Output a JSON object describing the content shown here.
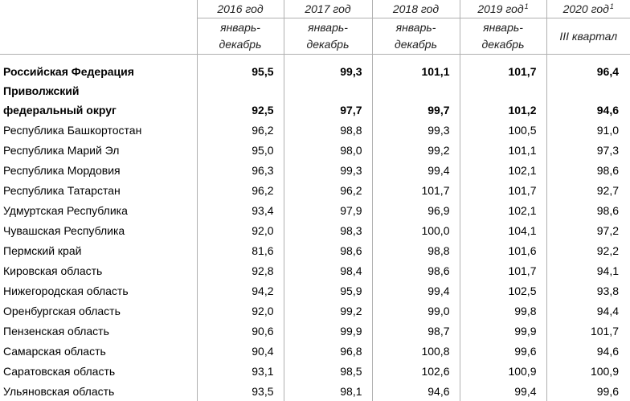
{
  "columns": [
    {
      "year": "2016 год",
      "sup": "",
      "period_line1": "январь-",
      "period_line2": "декабрь"
    },
    {
      "year": "2017 год",
      "sup": "",
      "period_line1": "январь-",
      "period_line2": "декабрь"
    },
    {
      "year": "2018 год",
      "sup": "",
      "period_line1": "январь-",
      "period_line2": "декабрь"
    },
    {
      "year": "2019 год",
      "sup": "1",
      "period_line1": "январь-",
      "period_line2": "декабрь"
    },
    {
      "year": "2020 год",
      "sup": "1",
      "period_line1": "III квартал",
      "period_line2": ""
    }
  ],
  "summary": {
    "rf": {
      "name": "Российская Федерация",
      "values": [
        "95,5",
        "99,3",
        "101,1",
        "101,7",
        "96,4"
      ]
    },
    "pfo": {
      "name_line1": "Приволжский",
      "name_line2": "федеральный округ",
      "values": [
        "92,5",
        "97,7",
        "99,7",
        "101,2",
        "94,6"
      ]
    }
  },
  "rows": [
    {
      "name": "Республика Башкортостан",
      "values": [
        "96,2",
        "98,8",
        "99,3",
        "100,5",
        "91,0"
      ]
    },
    {
      "name": "Республика Марий Эл",
      "values": [
        "95,0",
        "98,0",
        "99,2",
        "101,1",
        "97,3"
      ]
    },
    {
      "name": "Республика Мордовия",
      "values": [
        "96,3",
        "99,3",
        "99,4",
        "102,1",
        "98,6"
      ]
    },
    {
      "name": "Республика Татарстан",
      "values": [
        "96,2",
        "96,2",
        "101,7",
        "101,7",
        "92,7"
      ]
    },
    {
      "name": "Удмуртская Республика",
      "values": [
        "93,4",
        "97,9",
        "96,9",
        "102,1",
        "98,6"
      ]
    },
    {
      "name": "Чувашская Республика",
      "values": [
        "92,0",
        "98,3",
        "100,0",
        "104,1",
        "97,2"
      ]
    },
    {
      "name": "Пермский край",
      "values": [
        "81,6",
        "98,6",
        "98,8",
        "101,6",
        "92,2"
      ]
    },
    {
      "name": "Кировская область",
      "values": [
        "92,8",
        "98,4",
        "98,6",
        "101,7",
        "94,1"
      ]
    },
    {
      "name": "Нижегородская область",
      "values": [
        "94,2",
        "95,9",
        "99,4",
        "102,5",
        "93,8"
      ]
    },
    {
      "name": "Оренбургская область",
      "values": [
        "92,0",
        "99,2",
        "99,0",
        "99,8",
        "94,4"
      ]
    },
    {
      "name": "Пензенская область",
      "values": [
        "90,6",
        "99,9",
        "98,7",
        "99,9",
        "101,7"
      ]
    },
    {
      "name": "Самарская область",
      "values": [
        "90,4",
        "96,8",
        "100,8",
        "99,6",
        "94,6"
      ]
    },
    {
      "name": "Саратовская область",
      "values": [
        "93,1",
        "98,5",
        "102,6",
        "100,9",
        "100,9"
      ]
    },
    {
      "name": "Ульяновская область",
      "values": [
        "93,5",
        "98,1",
        "94,6",
        "99,4",
        "99,6"
      ]
    }
  ]
}
